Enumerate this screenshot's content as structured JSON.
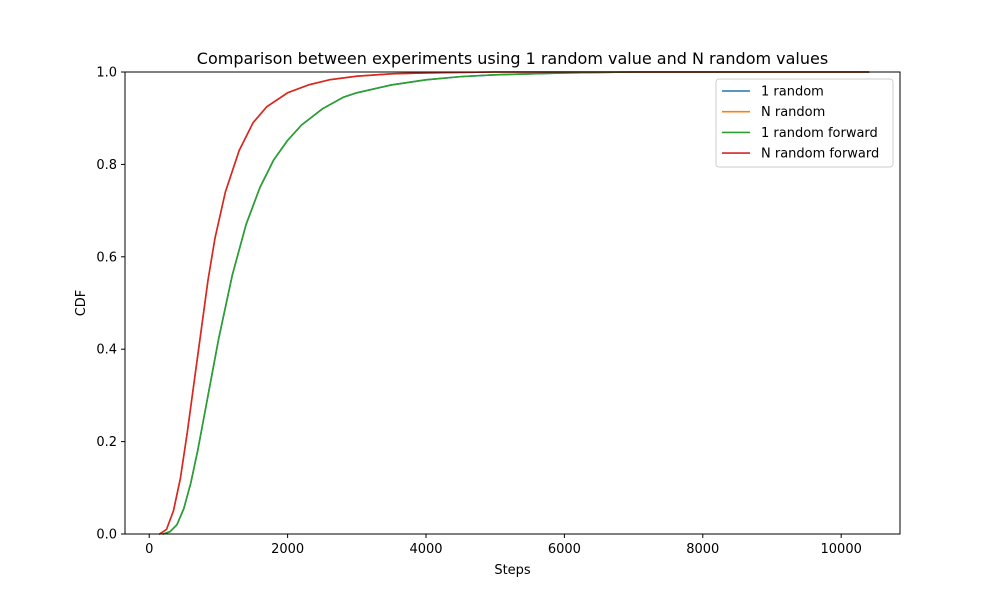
{
  "chart_data": {
    "type": "line",
    "title": "Comparison between experiments using 1 random value and N random values",
    "xlabel": "Steps",
    "ylabel": "CDF",
    "xlim": [
      -350,
      10850
    ],
    "ylim": [
      0,
      1
    ],
    "x_ticks": [
      0,
      2000,
      4000,
      6000,
      8000,
      10000
    ],
    "y_ticks": [
      0.0,
      0.2,
      0.4,
      0.6,
      0.8,
      1.0
    ],
    "x_tick_labels": [
      "0",
      "2000",
      "4000",
      "6000",
      "8000",
      "10000"
    ],
    "y_tick_labels": [
      "0.0",
      "0.2",
      "0.4",
      "0.6",
      "0.8",
      "1.0"
    ],
    "grid": false,
    "legend_position": "top-right",
    "series": [
      {
        "name": "1 random",
        "color": "#1f77b4",
        "x": [
          200,
          300,
          400,
          500,
          600,
          700,
          800,
          900,
          1000,
          1200,
          1400,
          1600,
          1800,
          2000,
          2200,
          2500,
          2800,
          3000,
          3500,
          4000,
          4500,
          5000,
          6000,
          7000,
          8000,
          9000,
          10000,
          10400
        ],
        "y": [
          0.0,
          0.005,
          0.02,
          0.055,
          0.11,
          0.18,
          0.26,
          0.34,
          0.42,
          0.56,
          0.67,
          0.75,
          0.81,
          0.852,
          0.885,
          0.92,
          0.945,
          0.955,
          0.972,
          0.983,
          0.99,
          0.994,
          0.998,
          1.0,
          1.0,
          1.0,
          1.0,
          1.0
        ]
      },
      {
        "name": "N random",
        "color": "#ff7f0e",
        "x": [
          150,
          250,
          350,
          450,
          550,
          650,
          750,
          850,
          950,
          1100,
          1300,
          1500,
          1700,
          2000,
          2300,
          2600,
          3000,
          3500,
          4000,
          5000,
          6000,
          7000,
          8000,
          10400
        ],
        "y": [
          0.0,
          0.01,
          0.05,
          0.12,
          0.22,
          0.33,
          0.44,
          0.55,
          0.64,
          0.74,
          0.83,
          0.89,
          0.925,
          0.955,
          0.972,
          0.983,
          0.991,
          0.996,
          0.998,
          1.0,
          1.0,
          1.0,
          1.0,
          1.0
        ]
      },
      {
        "name": "1 random forward",
        "color": "#2ca02c",
        "x": [
          200,
          300,
          400,
          500,
          600,
          700,
          800,
          900,
          1000,
          1200,
          1400,
          1600,
          1800,
          2000,
          2200,
          2500,
          2800,
          3000,
          3500,
          4000,
          4500,
          5000,
          6000,
          7000,
          8000,
          9000,
          10000,
          10400
        ],
        "y": [
          0.0,
          0.005,
          0.02,
          0.055,
          0.11,
          0.18,
          0.26,
          0.34,
          0.42,
          0.56,
          0.67,
          0.75,
          0.81,
          0.852,
          0.885,
          0.92,
          0.945,
          0.955,
          0.972,
          0.983,
          0.99,
          0.994,
          0.998,
          1.0,
          1.0,
          1.0,
          1.0,
          1.0
        ]
      },
      {
        "name": "N random forward",
        "color": "#d62728",
        "x": [
          150,
          250,
          350,
          450,
          550,
          650,
          750,
          850,
          950,
          1100,
          1300,
          1500,
          1700,
          2000,
          2300,
          2600,
          3000,
          3500,
          4000,
          5000,
          6000,
          7000,
          8000,
          10400
        ],
        "y": [
          0.0,
          0.01,
          0.05,
          0.12,
          0.22,
          0.33,
          0.44,
          0.55,
          0.64,
          0.74,
          0.83,
          0.89,
          0.925,
          0.955,
          0.972,
          0.983,
          0.991,
          0.996,
          0.998,
          1.0,
          1.0,
          1.0,
          1.0,
          1.0
        ]
      }
    ]
  }
}
